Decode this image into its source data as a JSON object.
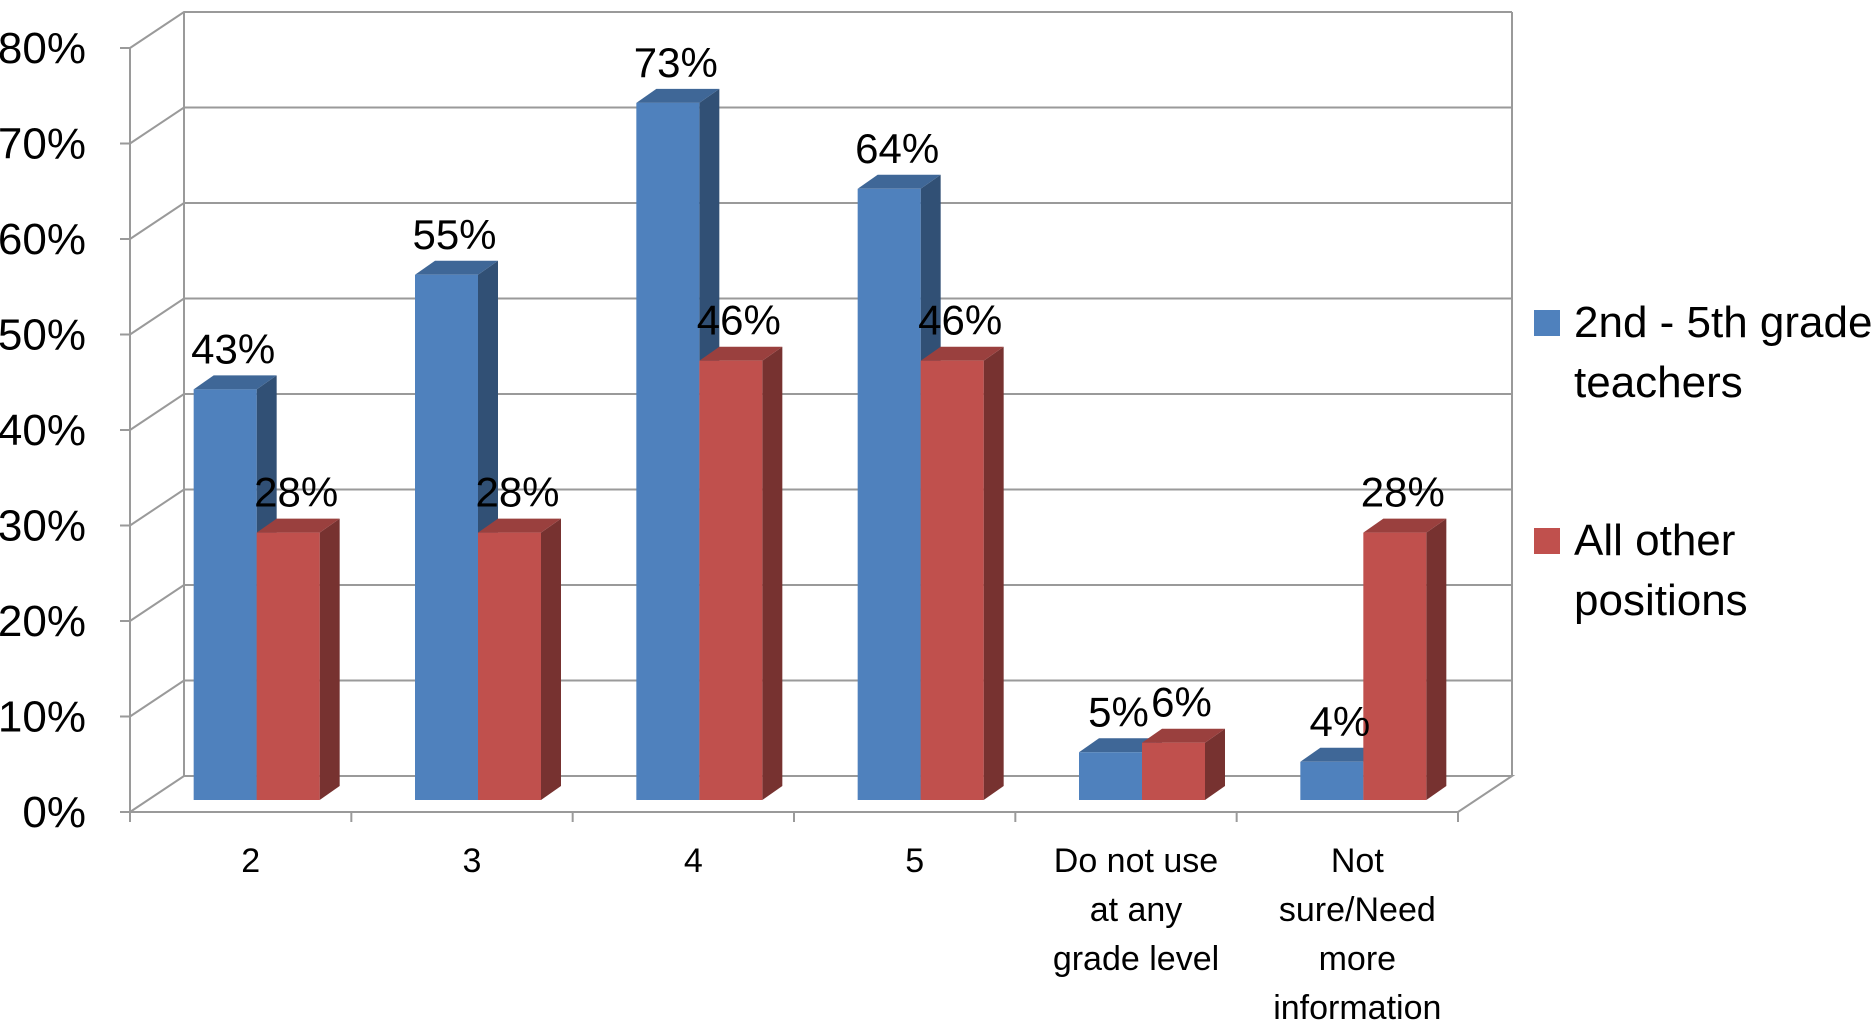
{
  "chart_data": {
    "type": "bar",
    "title": "",
    "xlabel": "",
    "ylabel": "",
    "ylim": [
      0,
      80
    ],
    "y_ticks": [
      "0%",
      "10%",
      "20%",
      "30%",
      "40%",
      "50%",
      "60%",
      "70%",
      "80%"
    ],
    "grid": true,
    "style": "3d-clustered-column",
    "legend_position": "right",
    "categories": [
      [
        "2"
      ],
      [
        "3"
      ],
      [
        "4"
      ],
      [
        "5"
      ],
      [
        "Do not use",
        "at any",
        "grade level"
      ],
      [
        "Not",
        "sure/Need",
        "more",
        "information"
      ]
    ],
    "series": [
      {
        "name_lines": [
          "2nd - 5th grade",
          "teachers"
        ],
        "color": "#4f81bd",
        "values": [
          43,
          55,
          73,
          64,
          5,
          4
        ],
        "labels": [
          "43%",
          "55%",
          "73%",
          "64%",
          "5%",
          "4%"
        ]
      },
      {
        "name_lines": [
          "All other",
          "positions"
        ],
        "color": "#c0504d",
        "values": [
          28,
          28,
          46,
          46,
          6,
          28
        ],
        "labels": [
          "28%",
          "28%",
          "46%",
          "46%",
          "6%",
          "28%"
        ]
      }
    ]
  }
}
